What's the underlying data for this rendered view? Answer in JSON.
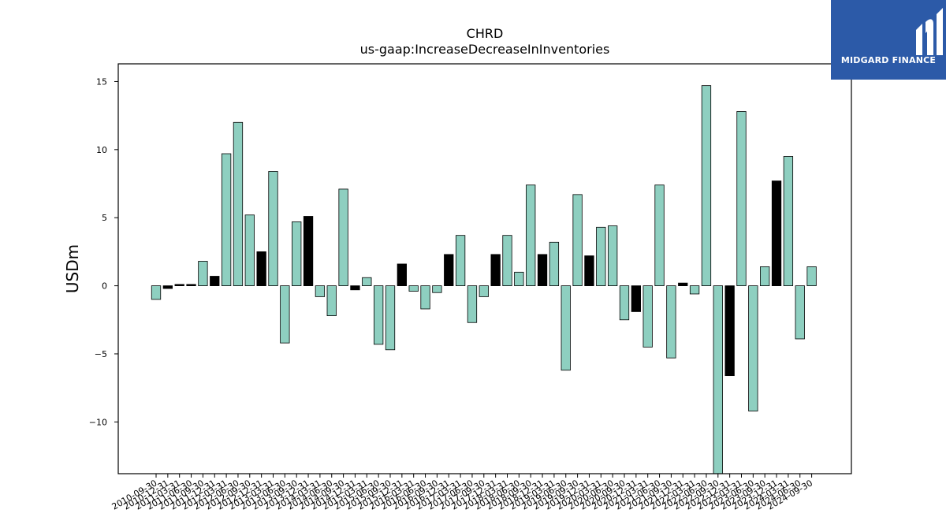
{
  "chart_data": {
    "type": "bar",
    "title": "CHRD",
    "subtitle": "us-gaap:IncreaseDecreaseInInventories",
    "xlabel": "",
    "ylabel": "USDm",
    "ylim": [
      -13.8,
      16.3
    ],
    "yticks": [
      -10,
      -5,
      0,
      5,
      10,
      15
    ],
    "grid": false,
    "categories": [
      "2010-09-30",
      "2010-12-31",
      "2011-03-31",
      "2011-06-30",
      "2011-09-30",
      "2011-12-31",
      "2012-03-31",
      "2012-06-30",
      "2012-09-30",
      "2012-12-31",
      "2013-03-31",
      "2013-06-30",
      "2013-09-30",
      "2013-12-31",
      "2014-03-31",
      "2014-06-30",
      "2014-09-30",
      "2014-12-31",
      "2015-03-31",
      "2015-06-30",
      "2015-09-30",
      "2015-12-31",
      "2016-03-31",
      "2016-06-30",
      "2016-09-30",
      "2016-12-31",
      "2017-03-31",
      "2017-06-30",
      "2017-09-30",
      "2017-12-31",
      "2018-03-31",
      "2018-06-30",
      "2018-09-30",
      "2018-12-31",
      "2019-03-31",
      "2019-06-30",
      "2019-09-30",
      "2019-12-31",
      "2020-03-31",
      "2020-06-30",
      "2020-09-30",
      "2020-12-31",
      "2021-03-31",
      "2021-06-30",
      "2021-09-30",
      "2021-12-31",
      "2022-03-31",
      "2022-06-30",
      "2022-09-30",
      "2022-12-31",
      "2023-03-31",
      "2023-06-30",
      "2023-09-30",
      "2023-12-31",
      "2024-03-31",
      "2024-06-30",
      "2024-09-30"
    ],
    "values": [
      -1.0,
      -0.2,
      0.1,
      0.1,
      1.8,
      0.7,
      9.7,
      12.0,
      5.2,
      2.5,
      8.4,
      -4.2,
      4.7,
      5.1,
      -0.8,
      -2.2,
      7.1,
      -0.3,
      0.6,
      -4.3,
      -4.7,
      1.6,
      -0.4,
      -1.7,
      -0.5,
      2.3,
      3.7,
      -2.7,
      -0.8,
      2.3,
      3.7,
      1.0,
      7.4,
      2.3,
      3.2,
      -6.2,
      6.7,
      2.2,
      4.3,
      4.4,
      -2.5,
      -1.9,
      -4.5,
      7.4,
      -5.3,
      0.2,
      -0.6,
      14.7,
      -14.0,
      -6.6,
      12.8,
      -9.2,
      1.4,
      7.7,
      9.5,
      -3.9,
      1.4
    ],
    "bar_colors": [
      "#8ecfc0",
      "#000000",
      "#000000",
      "#000000",
      "#8ecfc0",
      "#000000",
      "#8ecfc0",
      "#8ecfc0",
      "#8ecfc0",
      "#000000",
      "#8ecfc0",
      "#8ecfc0",
      "#8ecfc0",
      "#000000",
      "#8ecfc0",
      "#8ecfc0",
      "#8ecfc0",
      "#000000",
      "#8ecfc0",
      "#8ecfc0",
      "#8ecfc0",
      "#000000",
      "#8ecfc0",
      "#8ecfc0",
      "#8ecfc0",
      "#000000",
      "#8ecfc0",
      "#8ecfc0",
      "#8ecfc0",
      "#000000",
      "#8ecfc0",
      "#8ecfc0",
      "#8ecfc0",
      "#000000",
      "#8ecfc0",
      "#8ecfc0",
      "#8ecfc0",
      "#000000",
      "#8ecfc0",
      "#8ecfc0",
      "#8ecfc0",
      "#000000",
      "#8ecfc0",
      "#8ecfc0",
      "#8ecfc0",
      "#000000",
      "#8ecfc0",
      "#8ecfc0",
      "#8ecfc0",
      "#000000",
      "#8ecfc0",
      "#8ecfc0",
      "#8ecfc0",
      "#000000",
      "#8ecfc0",
      "#8ecfc0",
      "#8ecfc0"
    ]
  },
  "logo": {
    "text": "MIDGARD FINANCE",
    "background": "#2c5aa8"
  }
}
